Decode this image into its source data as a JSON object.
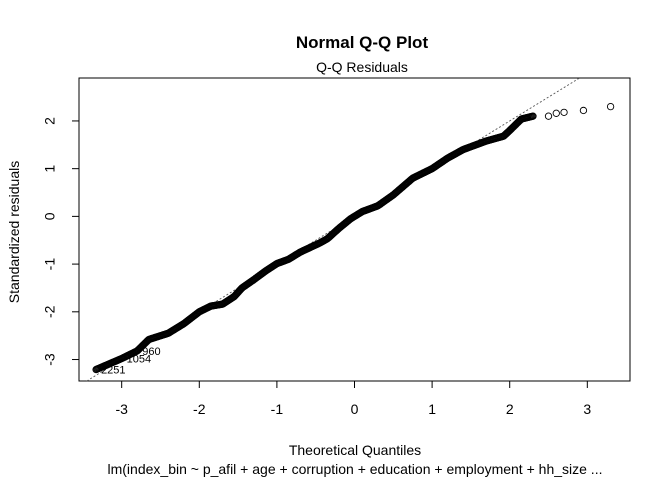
{
  "chart_data": {
    "type": "scatter",
    "title": "Normal Q-Q Plot",
    "subtitle": "Q-Q Residuals",
    "xlabel": "Theoretical Quantiles",
    "ylabel": "Standardized residuals",
    "caption": "lm(index_bin ~ p_afil + age + corruption + education + employment + hh_size ...",
    "xlim": [
      -3.55,
      3.55
    ],
    "ylim": [
      -3.45,
      2.9
    ],
    "x_ticks": [
      -3,
      -2,
      -1,
      0,
      1,
      2,
      3
    ],
    "y_ticks": [
      -3,
      -2,
      -1,
      0,
      1,
      2
    ],
    "grid": false,
    "reference_line": {
      "slope": 1.0,
      "intercept": 0.0
    },
    "curve": [
      [
        -3.33,
        -3.21
      ],
      [
        -3.0,
        -2.98
      ],
      [
        -2.8,
        -2.82
      ],
      [
        -2.65,
        -2.58
      ],
      [
        -2.4,
        -2.45
      ],
      [
        -2.2,
        -2.25
      ],
      [
        -2.0,
        -2.0
      ],
      [
        -1.85,
        -1.88
      ],
      [
        -1.7,
        -1.84
      ],
      [
        -1.55,
        -1.68
      ],
      [
        -1.45,
        -1.5
      ],
      [
        -1.3,
        -1.33
      ],
      [
        -1.15,
        -1.15
      ],
      [
        -1.0,
        -0.99
      ],
      [
        -0.85,
        -0.9
      ],
      [
        -0.7,
        -0.75
      ],
      [
        -0.45,
        -0.56
      ],
      [
        -0.35,
        -0.47
      ],
      [
        -0.2,
        -0.25
      ],
      [
        -0.05,
        -0.05
      ],
      [
        0.1,
        0.1
      ],
      [
        0.3,
        0.22
      ],
      [
        0.5,
        0.45
      ],
      [
        0.75,
        0.8
      ],
      [
        1.0,
        1.0
      ],
      [
        1.2,
        1.22
      ],
      [
        1.4,
        1.4
      ],
      [
        1.7,
        1.58
      ],
      [
        1.92,
        1.68
      ],
      [
        2.0,
        1.8
      ],
      [
        2.15,
        2.04
      ],
      [
        2.3,
        2.1
      ]
    ],
    "curve_density": 560,
    "tail_points": [
      [
        2.5,
        2.1
      ],
      [
        2.6,
        2.16
      ],
      [
        2.7,
        2.18
      ],
      [
        2.95,
        2.22
      ],
      [
        3.3,
        2.3
      ]
    ],
    "labeled_points": [
      {
        "x": -3.33,
        "y": -3.21,
        "label": "2251"
      },
      {
        "x": -3.0,
        "y": -2.98,
        "label": "1054"
      },
      {
        "x": -2.8,
        "y": -2.82,
        "label": "960"
      }
    ]
  }
}
